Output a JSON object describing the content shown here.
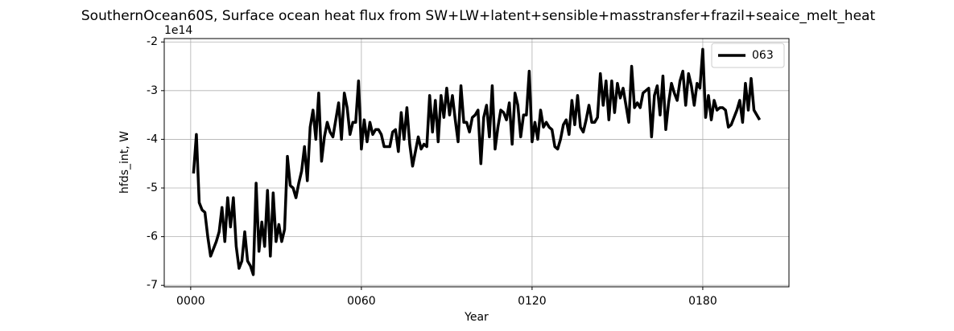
{
  "chart_data": {
    "type": "line",
    "title": "SouthernOcean60S, Surface ocean heat flux from SW+LW+latent+sensible+masstransfer+frazil+seaice_melt_heat",
    "x_label": "Year",
    "y_label": "hfds_int, W",
    "y_offset_label": "1e14",
    "x": [
      1,
      2,
      3,
      4,
      5,
      6,
      7,
      8,
      9,
      10,
      11,
      12,
      13,
      14,
      15,
      16,
      17,
      18,
      19,
      20,
      21,
      22,
      23,
      24,
      25,
      26,
      27,
      28,
      29,
      30,
      31,
      32,
      33,
      34,
      35,
      36,
      37,
      38,
      39,
      40,
      41,
      42,
      43,
      44,
      45,
      46,
      47,
      48,
      49,
      50,
      51,
      52,
      53,
      54,
      55,
      56,
      57,
      58,
      59,
      60,
      61,
      62,
      63,
      64,
      65,
      66,
      67,
      68,
      69,
      70,
      71,
      72,
      73,
      74,
      75,
      76,
      77,
      78,
      79,
      80,
      81,
      82,
      83,
      84,
      85,
      86,
      87,
      88,
      89,
      90,
      91,
      92,
      93,
      94,
      95,
      96,
      97,
      98,
      99,
      100,
      101,
      102,
      103,
      104,
      105,
      106,
      107,
      108,
      109,
      110,
      111,
      112,
      113,
      114,
      115,
      116,
      117,
      118,
      119,
      120,
      121,
      122,
      123,
      124,
      125,
      126,
      127,
      128,
      129,
      130,
      131,
      132,
      133,
      134,
      135,
      136,
      137,
      138,
      139,
      140,
      141,
      142,
      143,
      144,
      145,
      146,
      147,
      148,
      149,
      150,
      151,
      152,
      153,
      154,
      155,
      156,
      157,
      158,
      159,
      160,
      161,
      162,
      163,
      164,
      165,
      166,
      167,
      168,
      169,
      170,
      171,
      172,
      173,
      174,
      175,
      176,
      177,
      178,
      179,
      180,
      181,
      182,
      183,
      184,
      185,
      186,
      187,
      188,
      189,
      190,
      191,
      192,
      193,
      194,
      195,
      196,
      197,
      198,
      199,
      200
    ],
    "series": [
      {
        "name": "063",
        "color": "#000000",
        "values": [
          -4.7,
          -3.9,
          -5.3,
          -5.45,
          -5.5,
          -6.0,
          -6.4,
          -6.25,
          -6.1,
          -5.9,
          -5.4,
          -6.1,
          -5.2,
          -5.8,
          -5.2,
          -6.2,
          -6.65,
          -6.5,
          -5.9,
          -6.5,
          -6.6,
          -6.78,
          -4.9,
          -6.3,
          -5.7,
          -6.2,
          -5.05,
          -6.4,
          -5.1,
          -6.1,
          -5.75,
          -6.1,
          -5.85,
          -4.35,
          -4.95,
          -5.0,
          -5.2,
          -4.9,
          -4.65,
          -4.15,
          -4.85,
          -3.75,
          -3.4,
          -4.0,
          -3.05,
          -4.45,
          -3.95,
          -3.65,
          -3.85,
          -3.95,
          -3.6,
          -3.25,
          -4.0,
          -3.05,
          -3.35,
          -3.9,
          -3.65,
          -3.65,
          -2.8,
          -4.2,
          -3.6,
          -4.05,
          -3.65,
          -3.9,
          -3.8,
          -3.8,
          -3.9,
          -4.15,
          -4.15,
          -4.15,
          -3.85,
          -3.8,
          -4.25,
          -3.45,
          -4.0,
          -3.35,
          -4.1,
          -4.55,
          -4.25,
          -3.95,
          -4.2,
          -4.1,
          -4.15,
          -3.1,
          -3.85,
          -3.2,
          -4.05,
          -3.1,
          -3.55,
          -2.95,
          -3.5,
          -3.1,
          -3.6,
          -4.05,
          -2.9,
          -3.65,
          -3.65,
          -3.85,
          -3.55,
          -3.5,
          -3.4,
          -4.5,
          -3.55,
          -3.3,
          -3.95,
          -2.9,
          -4.2,
          -3.75,
          -3.4,
          -3.45,
          -3.6,
          -3.25,
          -4.1,
          -3.05,
          -3.3,
          -3.95,
          -3.5,
          -3.5,
          -2.6,
          -4.05,
          -3.65,
          -4.0,
          -3.4,
          -3.75,
          -3.65,
          -3.75,
          -3.8,
          -4.15,
          -4.2,
          -4.0,
          -3.7,
          -3.6,
          -3.9,
          -3.2,
          -3.7,
          -3.1,
          -3.75,
          -3.85,
          -3.6,
          -3.3,
          -3.65,
          -3.65,
          -3.55,
          -2.65,
          -3.3,
          -2.8,
          -3.6,
          -2.8,
          -3.45,
          -2.85,
          -3.15,
          -2.95,
          -3.3,
          -3.65,
          -2.5,
          -3.35,
          -3.25,
          -3.35,
          -3.05,
          -3.0,
          -2.95,
          -3.95,
          -3.1,
          -2.9,
          -3.5,
          -2.7,
          -3.8,
          -3.25,
          -2.85,
          -3.05,
          -3.2,
          -2.8,
          -2.6,
          -3.3,
          -2.65,
          -2.9,
          -3.3,
          -2.85,
          -2.95,
          -2.15,
          -3.55,
          -3.1,
          -3.6,
          -3.2,
          -3.4,
          -3.35,
          -3.35,
          -3.4,
          -3.75,
          -3.7,
          -3.55,
          -3.4,
          -3.2,
          -3.65,
          -2.85,
          -3.4,
          -2.75,
          -3.4,
          -3.5,
          -3.6
        ]
      }
    ],
    "xlim": [
      -9.3,
      210.3
    ],
    "xticks": [
      {
        "value": 0,
        "label": "0000"
      },
      {
        "value": 60,
        "label": "0060"
      },
      {
        "value": 120,
        "label": "0120"
      },
      {
        "value": 180,
        "label": "0180"
      }
    ],
    "ylim": [
      -7.03,
      -1.93
    ],
    "yticks": [
      -7,
      -6,
      -5,
      -4,
      -3,
      -2
    ],
    "grid": true,
    "legend": "upper right"
  }
}
